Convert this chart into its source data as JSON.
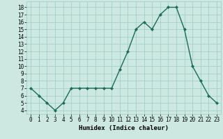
{
  "x": [
    0,
    1,
    2,
    3,
    4,
    5,
    6,
    7,
    8,
    9,
    10,
    11,
    12,
    13,
    14,
    15,
    16,
    17,
    18,
    19,
    20,
    21,
    22,
    23
  ],
  "y": [
    7,
    6,
    5,
    4,
    5,
    7,
    7,
    7,
    7,
    7,
    7,
    9.5,
    12,
    15,
    16,
    15,
    17,
    18,
    18,
    15,
    10,
    8,
    6,
    5
  ],
  "line_color": "#1a6b5a",
  "marker_color": "#1a6b5a",
  "bg_color": "#cce8e0",
  "grid_color": "#99ccc2",
  "xlabel": "Humidex (Indice chaleur)",
  "xlim": [
    -0.5,
    23.5
  ],
  "ylim": [
    3.5,
    18.8
  ],
  "xticks": [
    0,
    1,
    2,
    3,
    4,
    5,
    6,
    7,
    8,
    9,
    10,
    11,
    12,
    13,
    14,
    15,
    16,
    17,
    18,
    19,
    20,
    21,
    22,
    23
  ],
  "yticks": [
    4,
    5,
    6,
    7,
    8,
    9,
    10,
    11,
    12,
    13,
    14,
    15,
    16,
    17,
    18
  ],
  "tick_fontsize": 5.5,
  "xlabel_fontsize": 6.5,
  "linewidth": 1.0,
  "markersize": 2.2
}
